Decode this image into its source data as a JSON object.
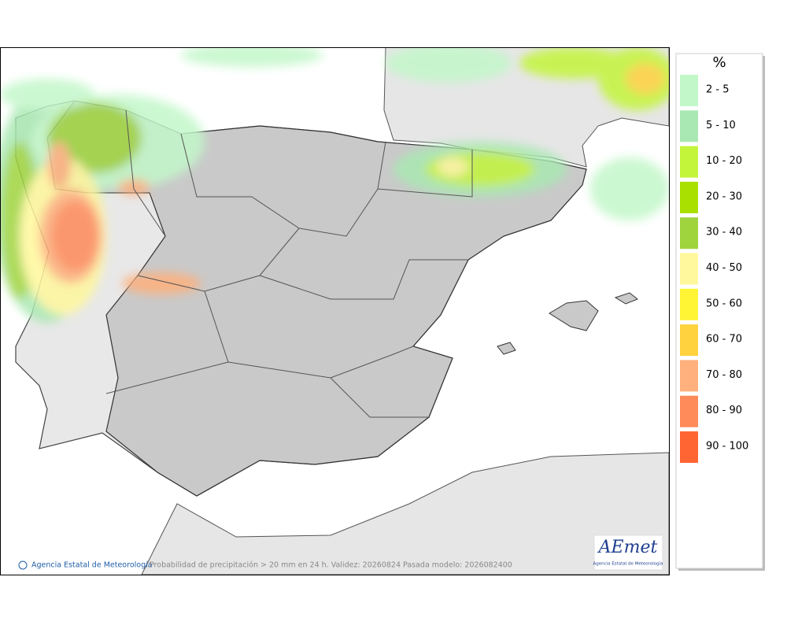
{
  "map": {
    "credit": "Agencia Estatal de Meteorología",
    "caption": "Probabilidad de precipitación > 20 mm en 24 h. Validez: 20260824 Pasada modelo: 2026082400",
    "logo": {
      "title": "AEmet",
      "subtitle": "Agencia Estatal de Meteorología"
    }
  },
  "legend": {
    "title": "%",
    "items": [
      {
        "label": "2 - 5",
        "color": "#c2f7c9"
      },
      {
        "label": "5 - 10",
        "color": "#a9e8b2"
      },
      {
        "label": "10 - 20",
        "color": "#c3f53a"
      },
      {
        "label": "20 - 30",
        "color": "#a9e000"
      },
      {
        "label": "30 - 40",
        "color": "#9fd43c"
      },
      {
        "label": "40 - 50",
        "color": "#fff89c"
      },
      {
        "label": "50 - 60",
        "color": "#fff535"
      },
      {
        "label": "60 - 70",
        "color": "#ffd23e"
      },
      {
        "label": "70 - 80",
        "color": "#ffb07c"
      },
      {
        "label": "80 - 90",
        "color": "#ff8a5a"
      },
      {
        "label": "90 - 100",
        "color": "#ff6433"
      }
    ]
  }
}
